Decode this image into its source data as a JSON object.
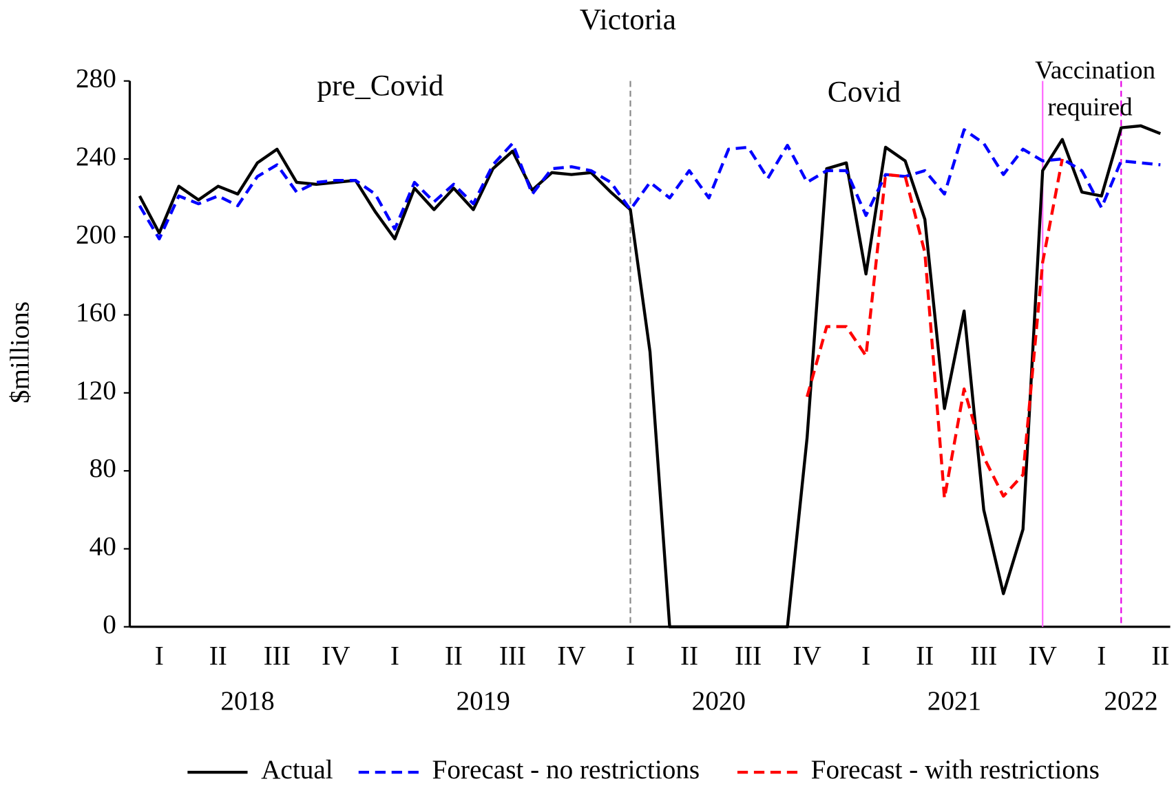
{
  "chart_data": {
    "type": "line",
    "title": "Victoria",
    "y_label": "$millions",
    "categories": [
      null,
      "I",
      null,
      null,
      "II",
      null,
      null,
      "III",
      null,
      null,
      "IV",
      null,
      null,
      "I",
      null,
      null,
      "II",
      null,
      null,
      "III",
      null,
      null,
      "IV",
      null,
      null,
      "I",
      null,
      null,
      "II",
      null,
      null,
      "III",
      null,
      null,
      "IV",
      null,
      null,
      "I",
      null,
      null,
      "II",
      null,
      null,
      "III",
      null,
      null,
      "IV",
      null,
      null,
      "I",
      null,
      null,
      "II"
    ],
    "years": [
      "2018",
      "2019",
      "2020",
      "2021",
      "2022"
    ],
    "series": [
      {
        "name": "Actual",
        "color": "#000000",
        "dash": "none",
        "values": [
          221,
          202,
          226,
          219,
          226,
          222,
          238,
          245,
          228,
          227,
          228,
          229,
          213,
          199,
          225,
          214,
          225,
          214,
          235,
          244,
          224,
          233,
          232,
          233,
          223,
          214,
          141,
          0,
          0,
          0,
          0,
          0,
          0,
          0,
          97,
          235,
          238,
          181,
          246,
          239,
          209,
          112,
          162,
          60,
          17,
          50,
          234,
          250,
          223,
          221,
          256,
          257,
          253
        ]
      },
      {
        "name": "Forecast - no restrictions",
        "color": "#0000ff",
        "dash": "dashed",
        "values": [
          216,
          199,
          221,
          217,
          221,
          216,
          231,
          237,
          223,
          228,
          229,
          229,
          222,
          204,
          228,
          218,
          227,
          217,
          237,
          248,
          222,
          235,
          236,
          234,
          228,
          214,
          228,
          220,
          234,
          220,
          245,
          246,
          230,
          247,
          228,
          234,
          234,
          211,
          232,
          231,
          234,
          222,
          255,
          248,
          232,
          245,
          239,
          240,
          234,
          215,
          239,
          238,
          237
        ]
      },
      {
        "name": "Forecast - with restrictions",
        "color": "#ff0000",
        "dash": "dashed",
        "values": [
          null,
          null,
          null,
          null,
          null,
          null,
          null,
          null,
          null,
          null,
          null,
          null,
          null,
          null,
          null,
          null,
          null,
          null,
          null,
          null,
          null,
          null,
          null,
          null,
          null,
          null,
          null,
          null,
          null,
          null,
          null,
          null,
          null,
          null,
          118,
          154,
          154,
          139,
          232,
          231,
          192,
          66,
          122,
          87,
          67,
          78,
          187,
          240,
          null,
          null,
          null,
          null,
          null
        ]
      }
    ],
    "ylim": [
      0,
      280
    ],
    "yticks": [
      0,
      40,
      80,
      120,
      160,
      200,
      240,
      280
    ],
    "vertical_lines": [
      {
        "at": 25,
        "color": "#888888",
        "dash": "dashed"
      },
      {
        "at": 46,
        "color": "#ff66ff",
        "dash": "solid"
      },
      {
        "at": 50,
        "color": "#e600e6",
        "dash": "dashed"
      }
    ],
    "annotations": [
      [
        "pre_Covid"
      ],
      [
        "Covid"
      ],
      [
        "Vaccination",
        "required"
      ]
    ],
    "legend": "bottom"
  }
}
